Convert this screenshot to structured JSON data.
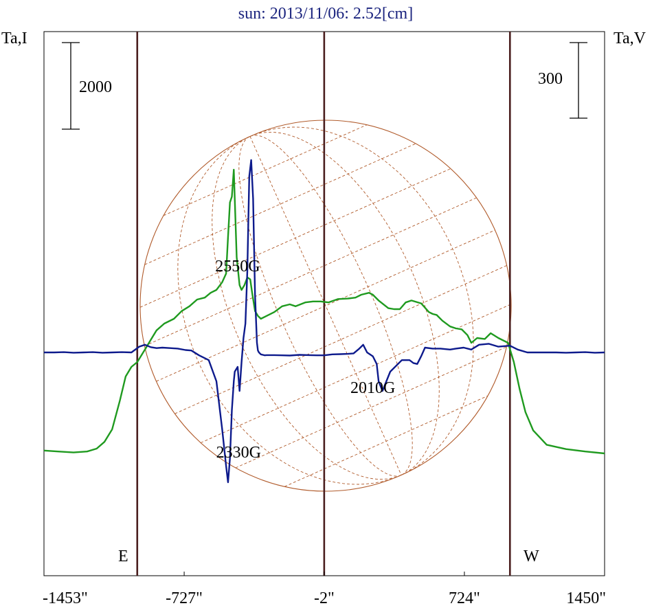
{
  "chart_data": {
    "type": "line",
    "title": "sun: 2013/11/06: 2.52[cm]",
    "left_axis_label": "Ta,I",
    "right_axis_label": "Ta,V",
    "scale_bar_left": "2000",
    "scale_bar_right": "300",
    "x_ticks": [
      {
        "value": -1453,
        "label": "-1453\""
      },
      {
        "value": -727,
        "label": "-727\""
      },
      {
        "value": -2,
        "label": "-2\""
      },
      {
        "value": 724,
        "label": "724\""
      },
      {
        "value": 1450,
        "label": "1450\""
      }
    ],
    "xlim": [
      -1453,
      1450
    ],
    "vertical_lines": [
      -970,
      -2,
      960
    ],
    "limb_labels": {
      "east": "E",
      "west": "W"
    },
    "annotations": [
      {
        "text": "2550G",
        "x": -450,
        "y_level": 900
      },
      {
        "text": "2330G",
        "x": -445,
        "y_level": -1035
      },
      {
        "text": "2010G",
        "x": 250,
        "y_level": -363
      }
    ],
    "colors": {
      "stokes_i": "#1f9a1f",
      "stokes_v": "#0d1a8c",
      "disk": "#b05a2a",
      "vertical_line": "#4a1e1e",
      "title": "#1a237e"
    },
    "series": [
      {
        "name": "",
        "color": "#1f9a1f",
        "x": [
          -1453,
          -1380,
          -1300,
          -1230,
          -1180,
          -1140,
          -1100,
          -1060,
          -1030,
          -1000,
          -970,
          -930,
          -900,
          -870,
          -830,
          -780,
          -740,
          -700,
          -660,
          -620,
          -590,
          -560,
          -530,
          -510,
          -500,
          -490,
          -480,
          -470,
          -455,
          -440,
          -430,
          -415,
          -400,
          -385,
          -375,
          -360,
          -345,
          -330,
          -300,
          -260,
          -220,
          -180,
          -150,
          -100,
          -60,
          -20,
          20,
          70,
          120,
          160,
          190,
          230,
          250,
          280,
          330,
          360,
          390,
          420,
          450,
          500,
          540,
          560,
          580,
          610,
          650,
          680,
          710,
          740,
          760,
          790,
          830,
          860,
          900,
          950,
          980,
          1010,
          1040,
          1080,
          1150,
          1250,
          1350,
          1450
        ],
        "y": [
          -1020,
          -1030,
          -1040,
          -1030,
          -1000,
          -930,
          -800,
          -500,
          -250,
          -150,
          -100,
          30,
          130,
          230,
          300,
          350,
          430,
          480,
          550,
          570,
          620,
          650,
          730,
          820,
          1200,
          1560,
          1620,
          1900,
          990,
          700,
          650,
          700,
          780,
          760,
          620,
          430,
          380,
          350,
          380,
          420,
          480,
          500,
          480,
          520,
          530,
          530,
          520,
          555,
          560,
          570,
          600,
          620,
          600,
          540,
          460,
          450,
          450,
          520,
          540,
          510,
          420,
          400,
          390,
          330,
          270,
          250,
          240,
          180,
          100,
          150,
          140,
          200,
          150,
          100,
          -100,
          -380,
          -620,
          -810,
          -960,
          -1005,
          -1030,
          -1050
        ]
      },
      {
        "name": "",
        "color": "#0d1a8c",
        "x": [
          -1453,
          -1400,
          -1350,
          -1300,
          -1250,
          -1200,
          -1150,
          -1100,
          -1050,
          -1000,
          -960,
          -930,
          -900,
          -870,
          -840,
          -800,
          -760,
          -720,
          -690,
          -650,
          -600,
          -560,
          -530,
          -510,
          -500,
          -490,
          -480,
          -470,
          -465,
          -450,
          -440,
          -430,
          -420,
          -410,
          -400,
          -390,
          -380,
          -370,
          -360,
          -350,
          -345,
          -340,
          -330,
          -320,
          -310,
          -300,
          -260,
          -220,
          -180,
          -130,
          -80,
          -40,
          -2,
          40,
          80,
          120,
          150,
          180,
          200,
          220,
          250,
          270,
          280,
          300,
          340,
          400,
          440,
          460,
          480,
          500,
          520,
          560,
          600,
          650,
          680,
          720,
          760,
          800,
          850,
          900,
          960,
          1000,
          1050,
          1100,
          1150,
          1200,
          1250,
          1300,
          1350,
          1400,
          1450
        ],
        "y": [
          0,
          0,
          3,
          -3,
          0,
          3,
          -3,
          0,
          3,
          0,
          60,
          80,
          55,
          45,
          50,
          45,
          40,
          25,
          20,
          -30,
          -80,
          -300,
          -800,
          -1180,
          -1350,
          -1100,
          -600,
          -300,
          -200,
          -150,
          -400,
          -100,
          150,
          300,
          850,
          1830,
          2000,
          1600,
          600,
          100,
          20,
          0,
          -20,
          -25,
          -30,
          -28,
          -28,
          -30,
          -32,
          -25,
          -28,
          -30,
          -30,
          -20,
          -18,
          -15,
          -10,
          40,
          80,
          0,
          -40,
          -120,
          -300,
          -400,
          -200,
          -80,
          -80,
          -110,
          -120,
          -40,
          50,
          40,
          40,
          30,
          40,
          50,
          30,
          80,
          90,
          60,
          70,
          30,
          0,
          0,
          0,
          0,
          -3,
          0,
          3,
          -3,
          0
        ]
      }
    ]
  }
}
